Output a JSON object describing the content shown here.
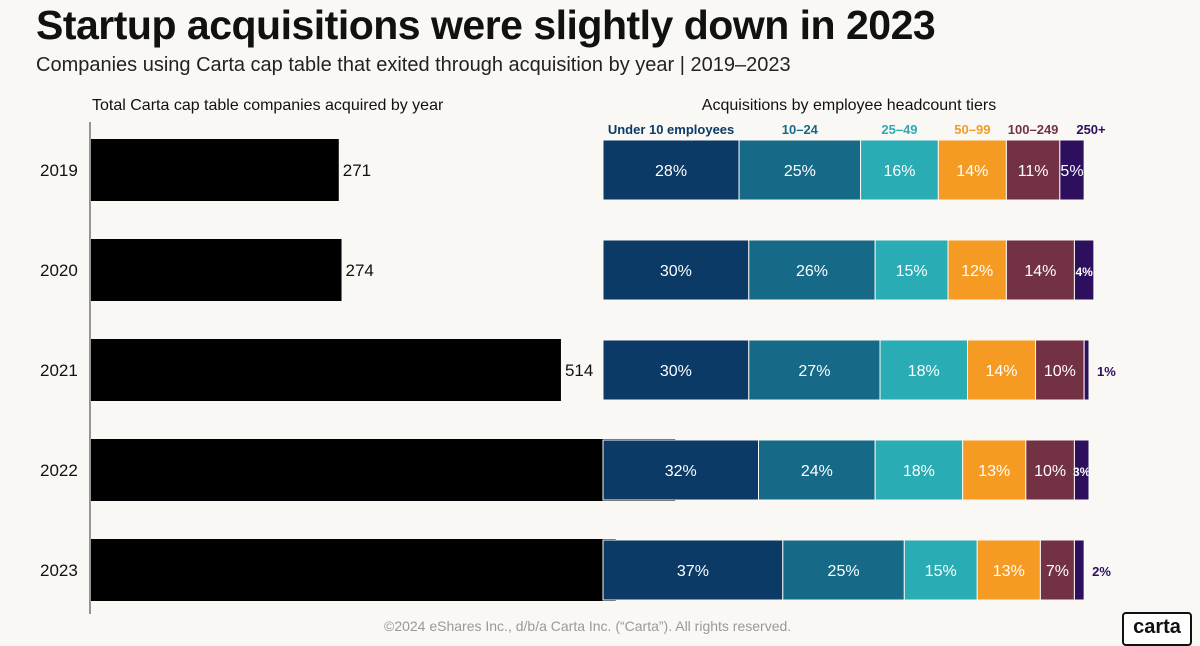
{
  "title": "Startup acquisitions were slightly down in 2023",
  "subtitle": "Companies using Carta cap table that exited through acquisition by year | 2019–2023",
  "footer": {
    "copyright": "©2024 eShares Inc., d/b/a Carta Inc. (“Carta”). All rights reserved.",
    "logo": "carta"
  },
  "colors": {
    "background": "#faf8f4",
    "bar": "#000000",
    "tiers": [
      "#0b3a66",
      "#166a87",
      "#2aacb4",
      "#f59b23",
      "#733244",
      "#2d0f5e"
    ],
    "tier_labels": [
      "#0b3a66",
      "#166a87",
      "#2aacb4",
      "#f59b23",
      "#733244",
      "#2d0f5e"
    ]
  },
  "chart_data": [
    {
      "type": "bar",
      "orientation": "horizontal",
      "title": "Total Carta cap table companies acquired by year",
      "categories": [
        "2019",
        "2020",
        "2021",
        "2022",
        "2023"
      ],
      "values": [
        271,
        274,
        514,
        639,
        574
      ],
      "xlim": [
        0,
        700
      ]
    },
    {
      "type": "bar",
      "orientation": "horizontal",
      "stacked": true,
      "percent": true,
      "title": "Acquisitions by employee headcount tiers",
      "categories": [
        "2019",
        "2020",
        "2021",
        "2022",
        "2023"
      ],
      "series": [
        {
          "name": "Under 10 employees",
          "values": [
            28,
            30,
            30,
            32,
            37
          ]
        },
        {
          "name": "10–24",
          "values": [
            25,
            26,
            27,
            24,
            25
          ]
        },
        {
          "name": "25–49",
          "values": [
            16,
            15,
            18,
            18,
            15
          ]
        },
        {
          "name": "50–99",
          "values": [
            14,
            12,
            14,
            13,
            13
          ]
        },
        {
          "name": "100–249",
          "values": [
            11,
            14,
            10,
            10,
            7
          ]
        },
        {
          "name": "250+",
          "values": [
            5,
            4,
            1,
            3,
            2
          ]
        }
      ],
      "value_suffix": "%"
    }
  ]
}
